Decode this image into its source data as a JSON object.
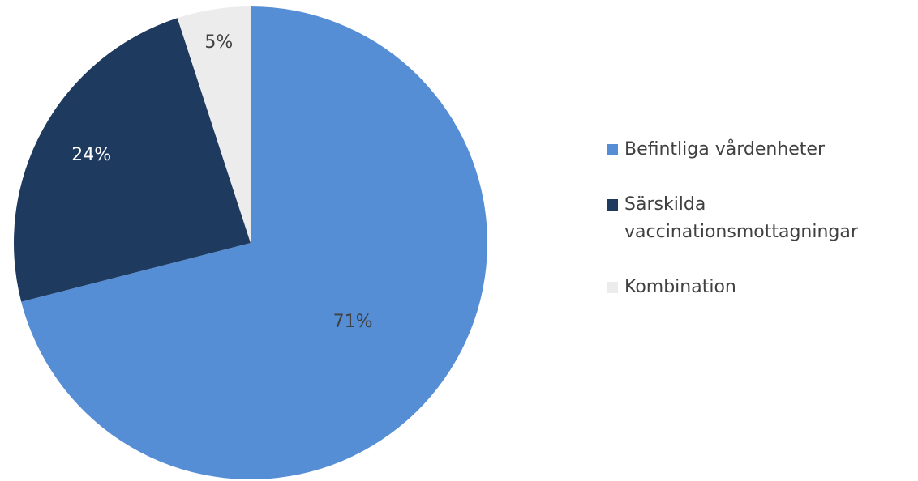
{
  "chart_data": {
    "type": "pie",
    "categories": [
      "Befintliga vårdenheter",
      "Särskilda vaccinationsmottagningar",
      "Kombination"
    ],
    "values": [
      71,
      24,
      5
    ],
    "value_labels": [
      "71%",
      "24%",
      "5%"
    ],
    "colors": [
      "#558ed5",
      "#1f3a5f",
      "#ececec"
    ],
    "legend": "right"
  }
}
